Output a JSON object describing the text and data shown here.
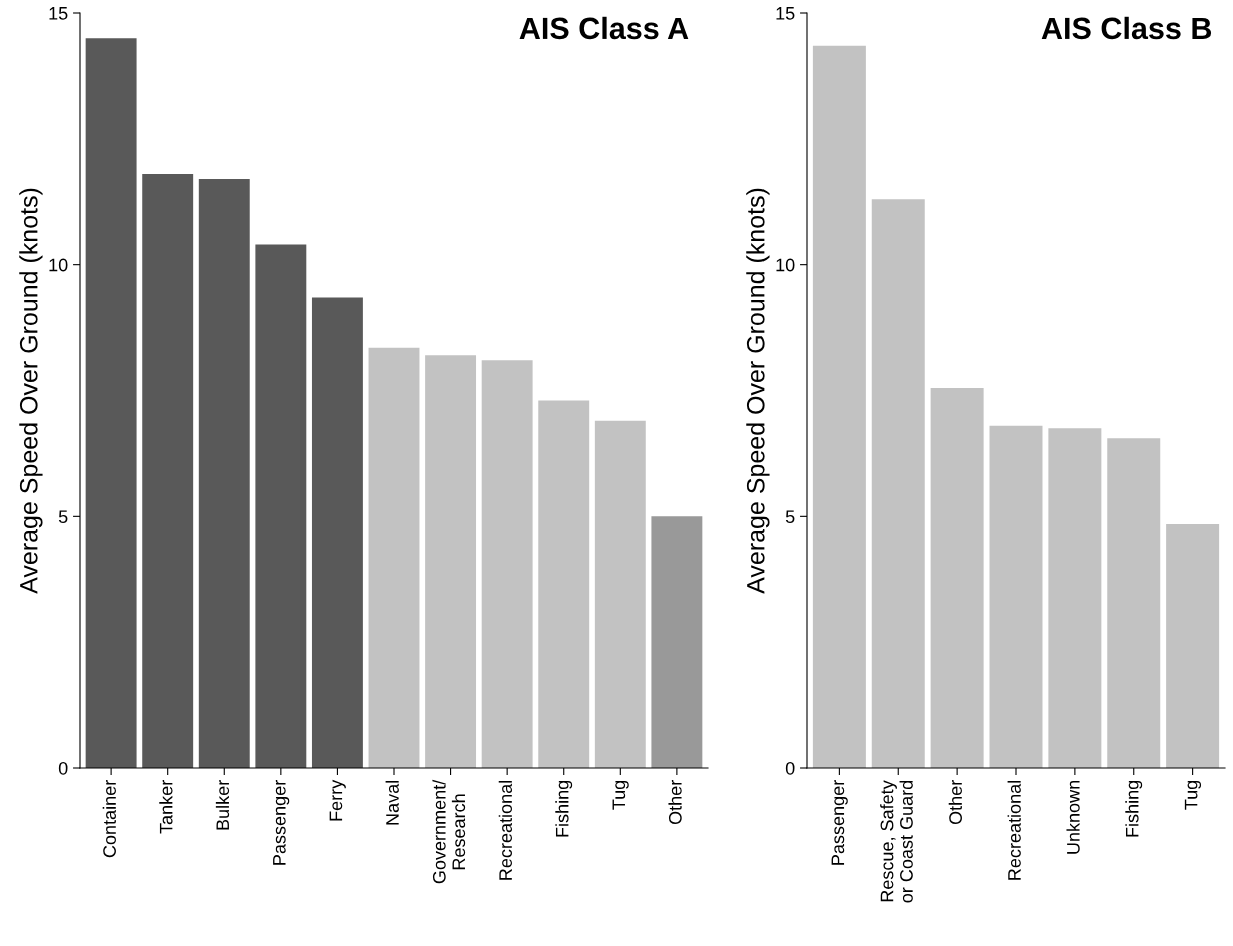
{
  "chart_data": [
    {
      "type": "bar",
      "title": "AIS Class A",
      "ylabel": "Average Speed Over Ground (knots)",
      "categories": [
        "Container",
        "Tanker",
        "Bulker",
        "Passenger",
        "Ferry",
        "Naval",
        "Government/\nResearch",
        "Recreational",
        "Fishing",
        "Tug",
        "Other"
      ],
      "values": [
        14.5,
        11.8,
        11.7,
        10.4,
        9.35,
        8.35,
        8.2,
        8.1,
        7.3,
        6.9,
        5.0
      ],
      "colors": [
        "#595959",
        "#595959",
        "#595959",
        "#595959",
        "#595959",
        "#c2c2c2",
        "#c2c2c2",
        "#c2c2c2",
        "#c2c2c2",
        "#c2c2c2",
        "#999999"
      ],
      "ylim": [
        0,
        15
      ],
      "yticks": [
        0,
        5,
        10,
        15
      ]
    },
    {
      "type": "bar",
      "title": "AIS Class B",
      "ylabel": "Average Speed Over Ground (knots)",
      "categories": [
        "Passenger",
        "Rescue, Safety\nor Coast Guard",
        "Other",
        "Recreational",
        "Unknown",
        "Fishing",
        "Tug"
      ],
      "values": [
        14.35,
        11.3,
        7.55,
        6.8,
        6.75,
        6.55,
        4.85
      ],
      "colors": [
        "#c2c2c2",
        "#c2c2c2",
        "#c2c2c2",
        "#c2c2c2",
        "#c2c2c2",
        "#c2c2c2",
        "#c2c2c2"
      ],
      "ylim": [
        0,
        15
      ],
      "yticks": [
        0,
        5,
        10,
        15
      ]
    }
  ]
}
